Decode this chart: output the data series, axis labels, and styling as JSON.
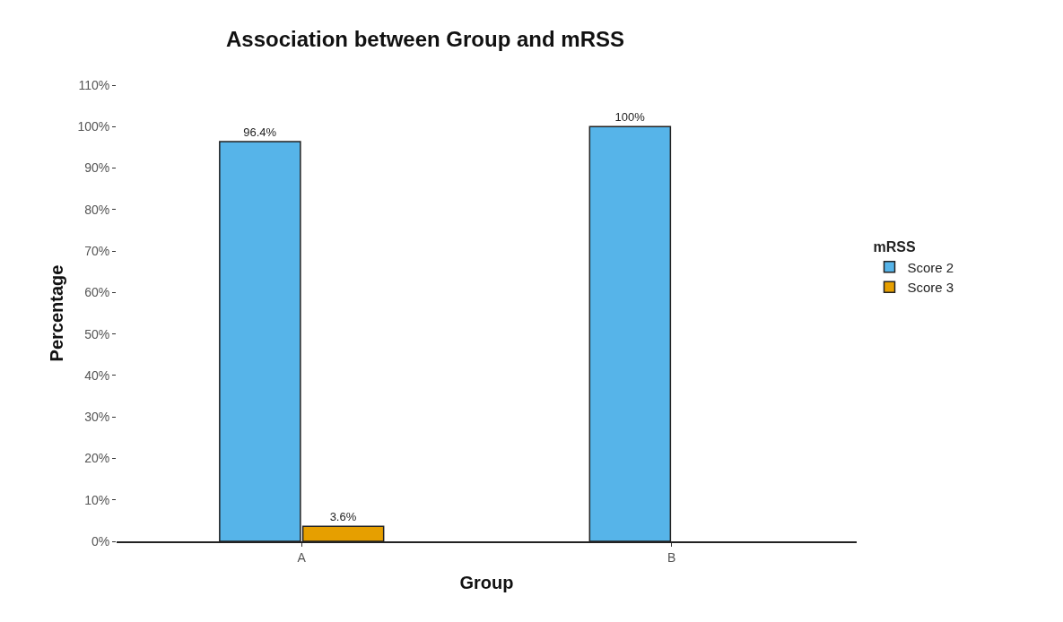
{
  "chart_data": {
    "type": "bar",
    "title": "Association between Group and mRSS",
    "xlabel": "Group",
    "ylabel": "Percentage",
    "legend_title": "mRSS",
    "categories": [
      "A",
      "B"
    ],
    "series": [
      {
        "name": "Score 2",
        "color": "#56b4e9",
        "values": [
          96.4,
          100
        ],
        "value_labels": [
          "96.4%",
          "100%"
        ]
      },
      {
        "name": "Score 3",
        "color": "#e69f00",
        "values": [
          3.6,
          null
        ],
        "value_labels": [
          "3.6%",
          null
        ]
      }
    ],
    "ylim": [
      0,
      110
    ],
    "yticks": [
      {
        "value": 0,
        "label": "0%"
      },
      {
        "value": 10,
        "label": "10%"
      },
      {
        "value": 20,
        "label": "20%"
      },
      {
        "value": 30,
        "label": "30%"
      },
      {
        "value": 40,
        "label": "40%"
      },
      {
        "value": 50,
        "label": "50%"
      },
      {
        "value": 60,
        "label": "60%"
      },
      {
        "value": 70,
        "label": "70%"
      },
      {
        "value": 80,
        "label": "80%"
      },
      {
        "value": 90,
        "label": "90%"
      },
      {
        "value": 100,
        "label": "100%"
      },
      {
        "value": 110,
        "label": "110%"
      }
    ],
    "grid": false,
    "legend": "right"
  }
}
